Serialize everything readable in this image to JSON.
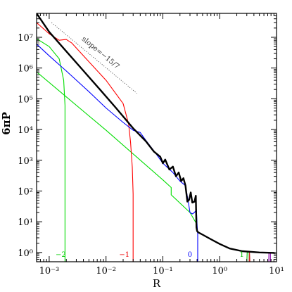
{
  "chart_data": {
    "type": "line",
    "title": "",
    "xlabel": "R",
    "ylabel": "6πP",
    "x_scale": "log",
    "y_scale": "log",
    "xlim": [
      0.0006,
      10
    ],
    "ylim": [
      0.5,
      60000000
    ],
    "x_ticks": [
      0.001,
      0.01,
      0.1,
      1,
      10
    ],
    "x_tick_labels": [
      "10⁻³",
      "10⁻²",
      "10⁻¹",
      "10⁰",
      "10¹"
    ],
    "y_ticks": [
      1,
      10,
      100,
      1000,
      10000,
      100000,
      1000000,
      10000000
    ],
    "y_tick_labels": [
      "10⁰",
      "10¹",
      "10²",
      "10³",
      "10⁴",
      "10⁵",
      "10⁶",
      "10⁷"
    ],
    "grid": false,
    "colors": {
      "total": "#000000",
      "m-2": "#00dd00",
      "m-1": "#ff0000",
      "m0": "#0000ff",
      "m1": "#00bb00",
      "m2_red": "#cc2222",
      "m2_purple": "#8800aa"
    },
    "annotation": {
      "text": "slope=−15/7",
      "from": [
        0.0011,
        30000000
      ],
      "to": [
        0.035,
        150000
      ]
    },
    "curve_labels": [
      {
        "text": "−2",
        "x": 0.0016,
        "y": 0.65,
        "color": "#00cc00"
      },
      {
        "text": "−1",
        "x": 0.021,
        "y": 0.65,
        "color": "#ee0000"
      },
      {
        "text": "0",
        "x": 0.3,
        "y": 0.65,
        "color": "#0000ff"
      },
      {
        "text": "1",
        "x": 2.45,
        "y": 0.65,
        "color": "#00bb00"
      }
    ],
    "series": [
      {
        "id": "total",
        "color": "#000000",
        "width": 2.4,
        "x": [
          0.0006,
          0.001,
          0.002,
          0.004,
          0.008,
          0.015,
          0.03,
          0.05,
          0.07,
          0.09,
          0.1,
          0.11,
          0.13,
          0.15,
          0.17,
          0.19,
          0.21,
          0.23,
          0.25,
          0.27,
          0.29,
          0.31,
          0.33,
          0.36,
          0.38,
          0.39,
          0.4,
          0.41,
          0.43,
          0.5,
          0.7,
          1.0,
          1.5,
          2.5,
          5,
          9
        ],
        "y": [
          60000000,
          15000000,
          3500000,
          820000,
          190000,
          50000,
          11000,
          4200,
          1900,
          1300,
          800,
          1050,
          500,
          620,
          300,
          400,
          210,
          260,
          150,
          45,
          52,
          90,
          42,
          45,
          70,
          6.5,
          5.0,
          4.7,
          4.4,
          3.8,
          2.7,
          1.9,
          1.35,
          1.1,
          1.0,
          0.97
        ]
      },
      {
        "id": "m-2",
        "color": "#00dd00",
        "width": 1.1,
        "x": [
          0.0006,
          0.001,
          0.0015,
          0.0018,
          0.00185,
          0.0019,
          0.0019
        ],
        "y": [
          9000000,
          5000000,
          2000000,
          400000,
          150000,
          60000,
          0.5
        ]
      },
      {
        "id": "m-2-tail",
        "color": "#00dd00",
        "width": 1.1,
        "x": [
          0.0006,
          0.01,
          0.1,
          0.14,
          0.14,
          0.3,
          0.4
        ],
        "y": [
          750000,
          9500,
          230,
          130,
          75,
          20,
          8
        ]
      },
      {
        "id": "m-1",
        "color": "#ff0000",
        "width": 1.1,
        "x": [
          0.0006,
          0.001,
          0.0015,
          0.002,
          0.0025,
          0.003,
          0.005,
          0.01,
          0.02,
          0.025,
          0.027,
          0.029,
          0.03,
          0.03
        ],
        "y": [
          30000000,
          13000000,
          8000000,
          8500000,
          6500000,
          4500000,
          1600000,
          400000,
          70000,
          15000,
          4000,
          600,
          80,
          0.5
        ]
      },
      {
        "id": "m0",
        "color": "#0000ff",
        "width": 1.1,
        "x": [
          0.0006,
          0.001,
          0.002,
          0.005,
          0.01,
          0.02,
          0.03,
          0.04,
          0.05,
          0.07,
          0.1,
          0.15,
          0.2,
          0.25,
          0.28,
          0.3,
          0.33,
          0.36,
          0.39,
          0.4,
          0.41,
          0.41
        ],
        "y": [
          6000000,
          2500000,
          800000,
          170000,
          50000,
          17000,
          9500,
          8000,
          4500,
          2000,
          800,
          400,
          210,
          150,
          45,
          20,
          18,
          20,
          25,
          8,
          4,
          0.5
        ]
      },
      {
        "id": "m1",
        "color": "#00bb00",
        "width": 1.1,
        "x": [
          3.0,
          3.05,
          3.3,
          3.3
        ],
        "y": [
          0.5,
          1.0,
          1.05,
          0.5
        ]
      },
      {
        "id": "m2-red",
        "color": "#cc2222",
        "width": 1.1,
        "x": [
          3.3,
          3.35,
          3.4
        ],
        "y": [
          0.5,
          1.05,
          0.5
        ]
      },
      {
        "id": "m2-purple",
        "color": "#8800aa",
        "width": 1.1,
        "x": [
          7.3,
          7.35,
          7.8,
          7.8
        ],
        "y": [
          0.5,
          1.0,
          1.0,
          0.5
        ]
      }
    ]
  }
}
